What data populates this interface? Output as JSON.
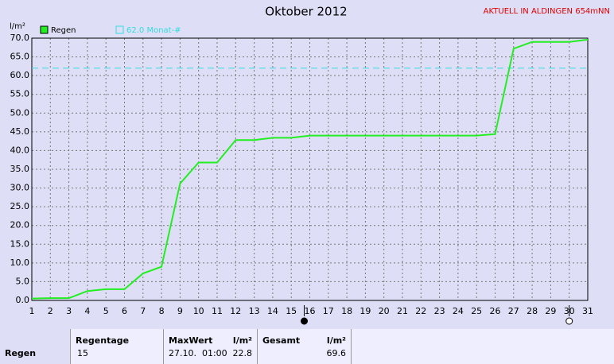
{
  "chart_data": {
    "type": "line",
    "title": "Oktober 2012",
    "badge": "AKTUELL IN ALDINGEN 654mNN",
    "y_label": "l/m²",
    "x": [
      1,
      2,
      3,
      4,
      5,
      6,
      7,
      8,
      9,
      10,
      11,
      12,
      13,
      14,
      15,
      16,
      17,
      18,
      19,
      20,
      21,
      22,
      23,
      24,
      25,
      26,
      27,
      28,
      29,
      30,
      31
    ],
    "series": [
      {
        "name": "Regen",
        "color": "#22ee22",
        "values": [
          0.5,
          0.6,
          0.6,
          2.5,
          3.0,
          3.0,
          7.2,
          9.0,
          31.2,
          36.8,
          36.8,
          42.8,
          42.8,
          43.4,
          43.4,
          44.0,
          44.0,
          44.0,
          44.0,
          44.0,
          44.0,
          44.0,
          44.0,
          44.0,
          44.0,
          44.4,
          67.2,
          69.0,
          69.0,
          69.0,
          69.6
        ]
      }
    ],
    "reference": {
      "name": "62.0 Monat-#",
      "value": 62,
      "color": "#33dddd"
    },
    "markers": [
      {
        "x": 15.7,
        "style": "filled"
      },
      {
        "x": 30,
        "style": "hollow"
      }
    ],
    "xlim": [
      1,
      31
    ],
    "xticks": [
      1,
      2,
      3,
      4,
      5,
      6,
      7,
      8,
      9,
      10,
      11,
      12,
      13,
      14,
      15,
      16,
      17,
      18,
      19,
      20,
      21,
      22,
      23,
      24,
      25,
      26,
      27,
      28,
      29,
      30,
      31
    ],
    "ylim": [
      0,
      70
    ],
    "yticks": [
      {
        "value": 0,
        "label": "0.0"
      },
      {
        "value": 5,
        "label": "5.0"
      },
      {
        "value": 10,
        "label": "10.0"
      },
      {
        "value": 15,
        "label": "15.0"
      },
      {
        "value": 20,
        "label": "20.0"
      },
      {
        "value": 25,
        "label": "25.0"
      },
      {
        "value": 30,
        "label": "30.0"
      },
      {
        "value": 35,
        "label": "35.0"
      },
      {
        "value": 40,
        "label": "40.0"
      },
      {
        "value": 45,
        "label": "45.0"
      },
      {
        "value": 50,
        "label": "50.0"
      },
      {
        "value": 55,
        "label": "55.0"
      },
      {
        "value": 60,
        "label": "60.0"
      },
      {
        "value": 65,
        "label": "65.0"
      },
      {
        "value": 70,
        "label": "70.0"
      }
    ],
    "grid": true
  },
  "table": {
    "row_label": "Regen",
    "cells": [
      {
        "head": "Regentage",
        "value": "15"
      },
      {
        "head": "MaxWert",
        "unit": "l/m²",
        "value": "27.10.  01:00",
        "value2": "22.8"
      },
      {
        "head": "Gesamt",
        "unit": "l/m²",
        "value2": "69.6"
      }
    ]
  }
}
